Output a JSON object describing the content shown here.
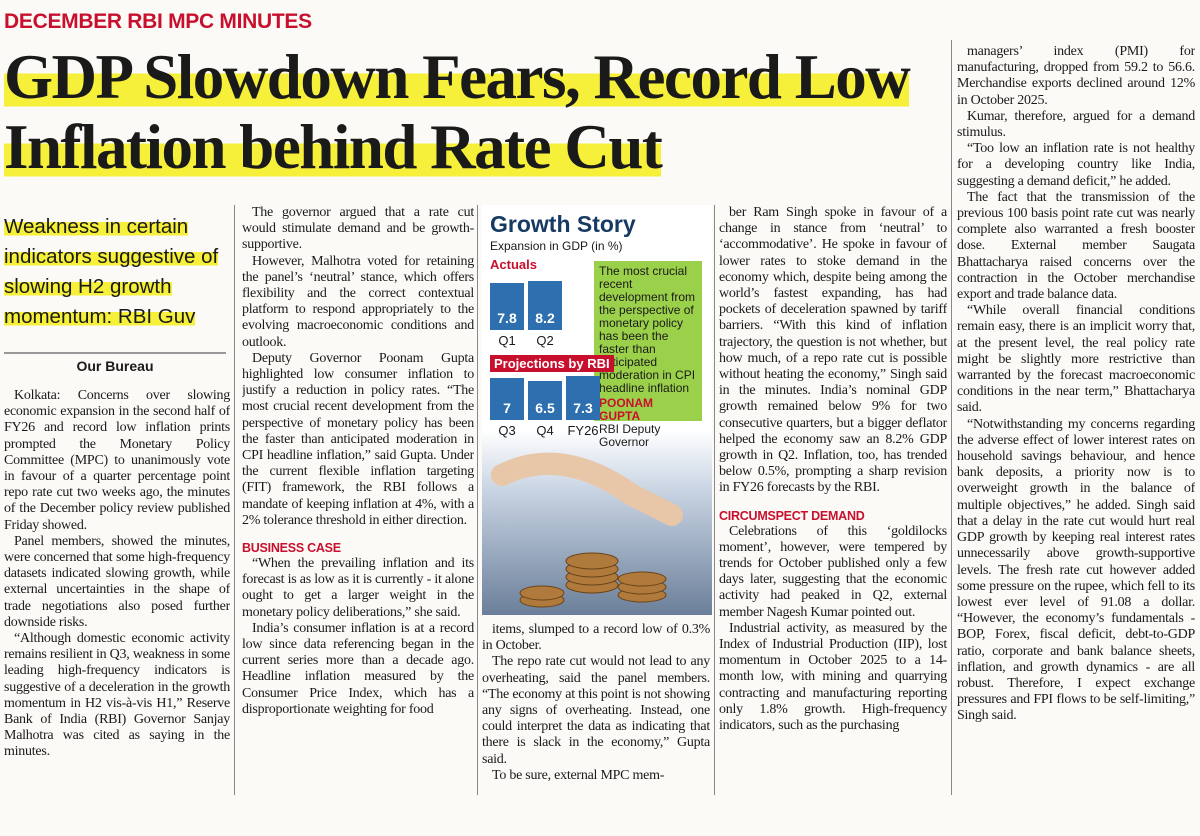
{
  "kicker": "DECEMBER RBI MPC MINUTES",
  "headline": "GDP Slowdown Fears, Record Low Inflation behind Rate Cut",
  "deck": "Weakness in certain indicators suggestive of slowing H2 growth momentum: RBI Guv",
  "byline": "Our Bureau",
  "columns": [
    {
      "blocks": [
        {
          "p": "Kolkata: Concerns over slowing economic expansion in the second half of FY26 and record low inflation prints prompted the Monetary Policy Committee (MPC) to unanimously vote in favour of a quarter percentage point repo rate cut two weeks ago, the minutes of the December policy review published Friday showed."
        },
        {
          "p": "Panel members, showed the minutes, were concerned that some high-frequency datasets indicated slowing growth, while external uncertainties in the shape of trade negotiations also posed further downside risks."
        },
        {
          "p": "“Although domestic economic activity remains resilient in Q3, weakness in some leading high-frequency indicators is suggestive of a deceleration in the growth momentum in H2 vis-à-vis H1,” Reserve Bank of India (RBI) Governor Sanjay Malhotra was cited as saying in the minutes."
        }
      ]
    },
    {
      "blocks": [
        {
          "p": "The governor argued that a rate cut would stimulate demand and be growth-supportive."
        },
        {
          "p": "However, Malhotra voted for retaining the panel’s ‘neutral’ stance, which offers flexibility and the correct contextual platform to respond appropriately to the evolving macroeconomic conditions and outlook."
        },
        {
          "p": "Deputy Governor Poonam Gupta highlighted low consumer inflation to justify a reduction in policy rates. “The most crucial recent development from the perspective of monetary policy has been the faster than anticipated moderation in CPI headline inflation,” said Gupta. Under the current flexible inflation targeting (FIT) framework, the RBI follows a mandate of keeping inflation at 4%, with a 2% tolerance threshold in either direction."
        },
        {
          "h": "BUSINESS CASE"
        },
        {
          "p": "“When the prevailing inflation and its forecast is as low as it is currently - it alone ought to get a larger weight in the monetary policy deliberations,” she said."
        },
        {
          "p": "India’s consumer inflation is at a record low since data referencing began in the current series more than a decade ago. Headline inflation measured by the Consumer Price Index, which has a disproportionate weighting for food"
        }
      ]
    },
    {
      "blocks": [
        {
          "p": "items, slumped to a record low of 0.3% in October."
        },
        {
          "p": "The repo rate cut would not lead to any overheating, said the panel members. “The economy at this point is not showing any signs of overheating. Instead, one could interpret the data as indicating that there is slack in the economy,” Gupta said."
        },
        {
          "p": "To be sure, external MPC mem-"
        }
      ]
    },
    {
      "blocks": [
        {
          "p": "ber Ram Singh spoke in favour of a change in stance from ‘neutral’ to ‘accommodative’. He spoke in favour of lower rates to stoke demand in the economy which, despite being among the world’s fastest expanding, has had pockets of deceleration spawned by tariff barriers. “With this kind of inflation trajectory, the question is not whether, but how much, of a repo rate cut is possible without heating the economy,” Singh said in the minutes. India’s nominal GDP growth remained below 9% for two consecutive quarters, but a bigger deflator helped the economy saw an 8.2% GDP growth in Q2. Inflation, too, has trended below 0.5%, prompting a sharp revision in FY26 forecasts by the RBI."
        },
        {
          "h": "CIRCUMSPECT DEMAND"
        },
        {
          "p": "Celebrations of this ‘goldilocks moment’, however, were tempered by trends for October published only a few days later, suggesting that the economic activity had peaked in Q2, external member Nagesh Kumar pointed out."
        },
        {
          "p": "Industrial activity, as measured by the Index of Industrial Production (IIP), lost momentum in October 2025 to a 14-month low, with mining and quarrying contracting and manufacturing reporting only 1.8% growth. High-frequency indicators, such as the purchasing"
        }
      ]
    },
    {
      "blocks": [
        {
          "p": "managers’ index (PMI) for manufacturing, dropped from 59.2 to 56.6. Merchandise exports declined around 12% in October 2025."
        },
        {
          "p": "Kumar, therefore, argued for a demand stimulus."
        },
        {
          "p": "“Too low an inflation rate is not healthy for a developing country like India, suggesting a demand deficit,” he added."
        },
        {
          "p": "The fact that the transmission of the previous 100 basis point rate cut was nearly complete also warranted a fresh booster dose. External member Saugata Bhattacharya raised concerns over the contraction in the October merchandise export and trade balance data."
        },
        {
          "p": "“While overall financial conditions remain easy, there is an implicit worry that, at the present level, the real policy rate might be slightly more restrictive than warranted by the forecast macroeconomic conditions in the near term,” Bhattacharya said."
        },
        {
          "p": "“Notwithstanding my concerns regarding the adverse effect of lower interest rates on household savings behaviour, and hence bank deposits, a priority now is to overweight growth in the balance of multiple objectives,” he added. Singh said that a delay in the rate cut would hurt real GDP growth by keeping real interest rates unnecessarily above growth-supportive levels. The fresh rate cut however added some pressure on the rupee, which fell to its lowest ever level of 91.08 a dollar. “However, the economy’s fundamentals - BOP, Forex, fiscal deficit, debt-to-GDP ratio, corporate and bank balance sheets, inflation, and growth dynamics - are all robust. Therefore, I expect exchange pressures and FPI flows to be self-limiting,” Singh said."
        }
      ]
    }
  ],
  "infographic": {
    "title": "Growth Story",
    "subtitle": "Expansion in GDP (in %)",
    "groups": [
      {
        "name": "Actuals",
        "categories": [
          "Q1",
          "Q2"
        ],
        "values": [
          7.8,
          8.2
        ]
      },
      {
        "name": "Projections by RBI",
        "categories": [
          "Q3",
          "Q4",
          "FY26"
        ],
        "values": [
          7,
          6.5,
          7.3
        ]
      }
    ],
    "quote": "The most crucial recent development from the perspective of monetary policy has been the faster than anticipated moderation in CPI headline inflation",
    "quote_name": "POONAM GUPTA",
    "quote_role": "RBI Deputy Governor"
  }
}
